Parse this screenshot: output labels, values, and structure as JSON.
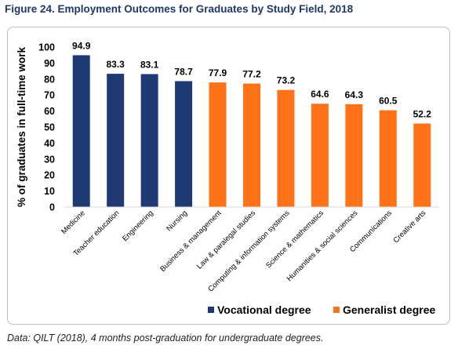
{
  "figure_title": "Figure 24. Employment Outcomes for Graduates by Study Field, 2018",
  "source_note": "Data: QILT (2018), 4 months post-graduation for undergraduate degrees.",
  "colors": {
    "vocational": "#1f3a73",
    "generalist": "#ff7218"
  },
  "chart_data": {
    "type": "bar",
    "title": "",
    "xlabel": "",
    "ylabel": "% of graduates in full-time work",
    "ylim": [
      0,
      100
    ],
    "yticks": [
      0,
      10,
      20,
      30,
      40,
      50,
      60,
      70,
      80,
      90,
      100
    ],
    "grid": false,
    "legend_position": "bottom",
    "categories": [
      "Medicine",
      "Teacher education",
      "Engineering",
      "Nursing",
      "Business & management",
      "Law & paralegal studies",
      "Computing & information systems",
      "Science & mathematics",
      "Humanities & social sciences",
      "Communications",
      "Creative arts"
    ],
    "values": [
      94.9,
      83.3,
      83.1,
      78.7,
      77.9,
      77.2,
      73.2,
      64.6,
      64.3,
      60.5,
      52.2
    ],
    "value_labels": [
      "94.9",
      "83.3",
      "83.1",
      "78.7",
      "77.9",
      "77.2",
      "73.2",
      "64.6",
      "64.3",
      "60.5",
      "52.2"
    ],
    "groups": [
      "vocational",
      "vocational",
      "vocational",
      "vocational",
      "generalist",
      "generalist",
      "generalist",
      "generalist",
      "generalist",
      "generalist",
      "generalist"
    ],
    "series": [
      {
        "name": "Vocational degree",
        "key": "vocational"
      },
      {
        "name": "Generalist degree",
        "key": "generalist"
      }
    ]
  }
}
